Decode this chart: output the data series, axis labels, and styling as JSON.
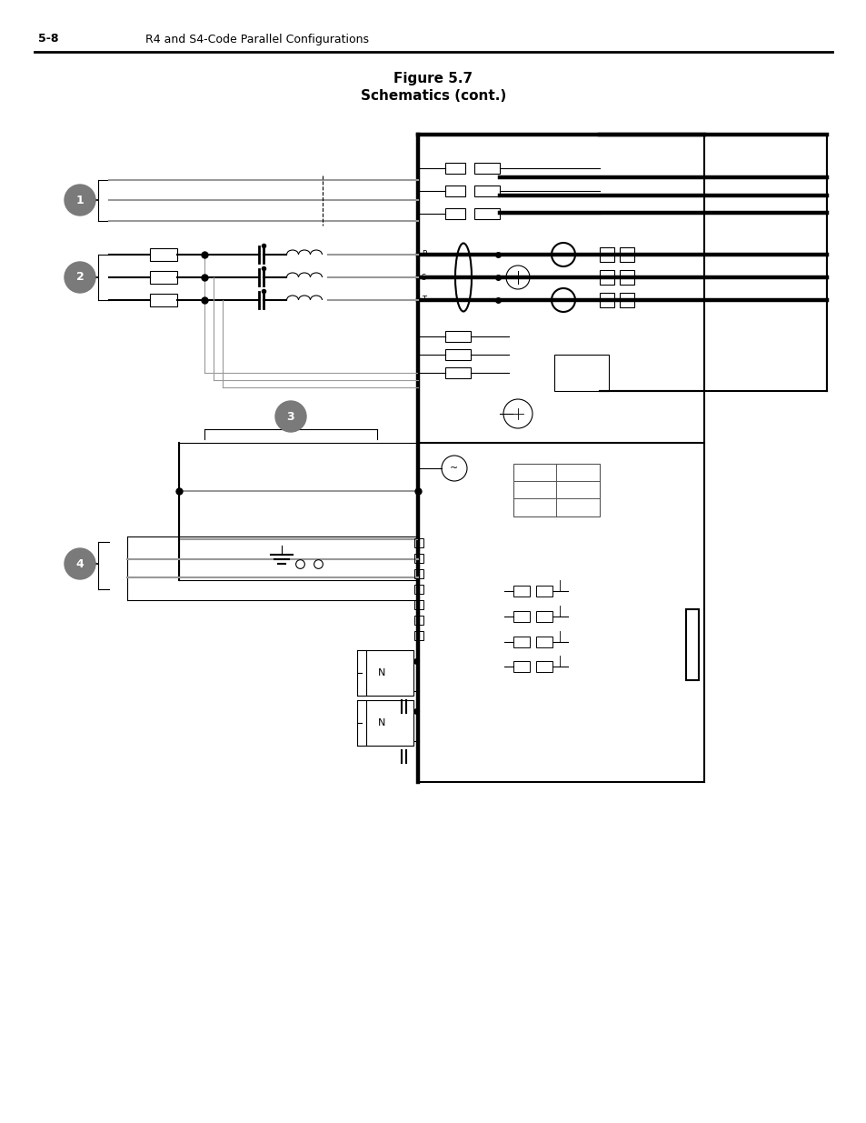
{
  "page_number": "5-8",
  "header_text": "R4 and S4-Code Parallel Configurations",
  "figure_title_line1": "Figure 5.7",
  "figure_title_line2": "Schematics (cont.)",
  "bg_color": "#ffffff",
  "line_color": "#000000",
  "gray_color": "#999999",
  "marker_color": "#7a7a7a",
  "thick_lw": 3.2,
  "med_lw": 1.5,
  "thin_lw": 0.8
}
